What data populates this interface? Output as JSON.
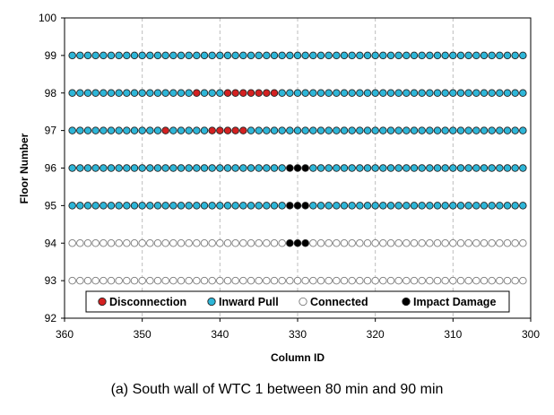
{
  "caption": "(a) South wall of WTC 1 between 80 min and 90 min",
  "chart_data": {
    "type": "scatter",
    "xlabel": "Column ID",
    "ylabel": "Floor Number",
    "xlim": [
      360,
      300
    ],
    "x_reversed": true,
    "ylim": [
      92,
      100
    ],
    "xticks": [
      360,
      350,
      340,
      330,
      320,
      310,
      300
    ],
    "yticks": [
      92,
      93,
      94,
      95,
      96,
      97,
      98,
      99,
      100
    ],
    "grid": "vertical dashed",
    "legend_position": "bottom",
    "columns": {
      "first": 359,
      "last": 301
    },
    "legend": [
      {
        "key": "disconnection",
        "label": "Disconnection",
        "color": "#d42121"
      },
      {
        "key": "inward_pull",
        "label": "Inward Pull",
        "color": "#2eb6d8"
      },
      {
        "key": "connected",
        "label": "Connected",
        "color": "#ffffff"
      },
      {
        "key": "impact_damage",
        "label": "Impact Damage",
        "color": "#000000"
      }
    ],
    "floors": [
      {
        "floor": 99,
        "default": "inward_pull",
        "disconnection": [],
        "impact_damage": []
      },
      {
        "floor": 98,
        "default": "inward_pull",
        "disconnection": [
          343,
          339,
          338,
          337,
          336,
          335,
          334,
          333
        ],
        "impact_damage": []
      },
      {
        "floor": 97,
        "default": "inward_pull",
        "disconnection": [
          347,
          341,
          340,
          339,
          338,
          337
        ],
        "impact_damage": []
      },
      {
        "floor": 96,
        "default": "inward_pull",
        "disconnection": [],
        "impact_damage": [
          331,
          330,
          329
        ]
      },
      {
        "floor": 95,
        "default": "inward_pull",
        "disconnection": [],
        "impact_damage": [
          331,
          330,
          329
        ]
      },
      {
        "floor": 94,
        "default": "connected",
        "disconnection": [],
        "impact_damage": [
          331,
          330,
          329
        ]
      },
      {
        "floor": 93,
        "default": "connected",
        "disconnection": [],
        "impact_damage": []
      }
    ]
  }
}
